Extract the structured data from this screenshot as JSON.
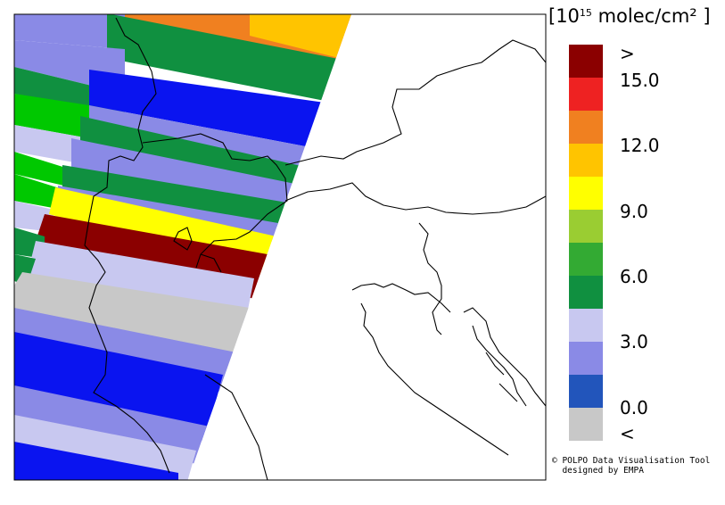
{
  "legend": {
    "title_prefix": "[10",
    "title_exponent": "15",
    "title_suffix": " molec/cm² ]",
    "colors": [
      "#8b0000",
      "#ee2222",
      "#f08020",
      "#ffc400",
      "#ffff00",
      "#9acd32",
      "#33aa33",
      "#109040",
      "#c8c8f0",
      "#8a8ae6",
      "#2255bb",
      "#c8c8c8"
    ],
    "labels": [
      ">",
      "15.0",
      "12.0",
      "9.0",
      "6.0",
      "3.0",
      "0.0",
      "<"
    ]
  },
  "credit": {
    "line1": "© POLPO Data Visualisation Tool",
    "line2": "designed by EMPA"
  },
  "map": {
    "swath_colors_top_to_bottom": [
      "orange",
      "green",
      "light-blue",
      "green",
      "dark-blue",
      "green",
      "light-blue",
      "green",
      "yellow",
      "dark-red",
      "lavender",
      "grey",
      "light-blue",
      "dark-blue",
      "light-blue",
      "lavender",
      "dark-blue"
    ]
  }
}
